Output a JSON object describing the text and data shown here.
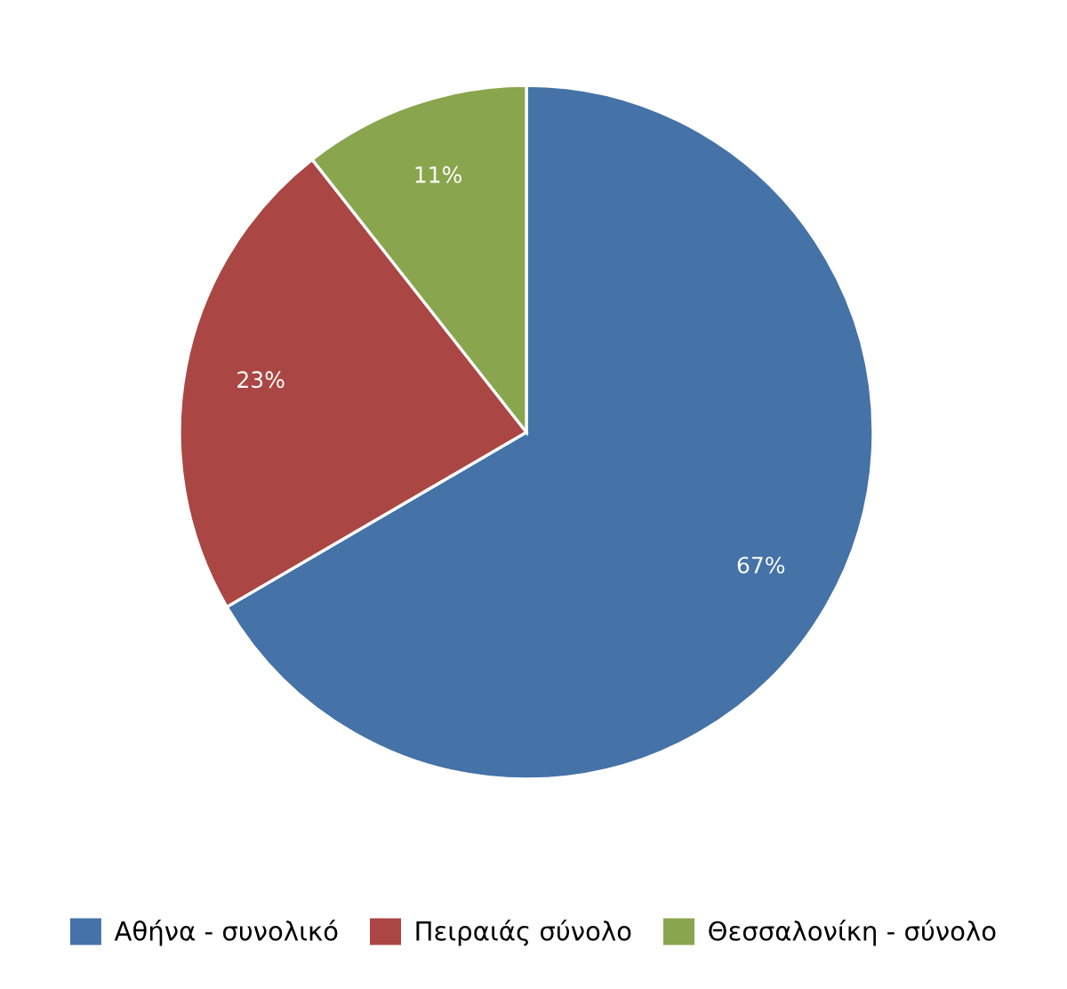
{
  "chart_data": {
    "type": "pie",
    "categories": [
      "Αθήνα - συνολικό",
      "Πειραιάς σύνολο",
      "Θεσσαλονίκη - σύνολο"
    ],
    "values": [
      66.6,
      22.8,
      10.6
    ],
    "value_labels": [
      "67%",
      "23%",
      "11%"
    ],
    "colors": [
      "#4572a7",
      "#aa4643",
      "#89a54e"
    ],
    "legend": "bottom"
  }
}
